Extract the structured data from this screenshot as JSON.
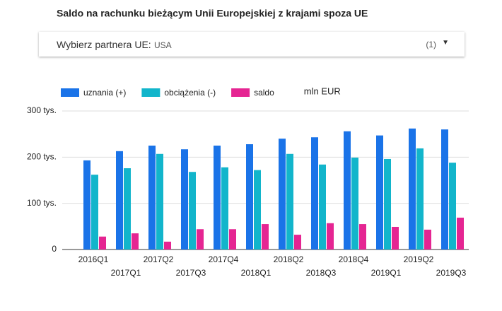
{
  "filter": {
    "label": "Wybierz partnera UE:",
    "value": "USA",
    "count": "(1)"
  },
  "chart_data": {
    "type": "bar",
    "title": "Saldo na rachunku bieżącym Unii Europejskiej z krajami spoza UE",
    "unit": "mln EUR",
    "categories": [
      "2016Q1",
      "2017Q1",
      "2017Q2",
      "2017Q3",
      "2017Q4",
      "2018Q1",
      "2018Q2",
      "2018Q3",
      "2018Q4",
      "2019Q1",
      "2019Q2",
      "2019Q3"
    ],
    "series": [
      {
        "name": "uznania (+)",
        "color": "#1a73e8",
        "values": [
          193000,
          213000,
          225000,
          217000,
          225000,
          228000,
          240000,
          243000,
          256000,
          247000,
          262000,
          260000
        ]
      },
      {
        "name": "obciążenia (-)",
        "color": "#12b5cb",
        "values": [
          162000,
          176000,
          207000,
          168000,
          178000,
          172000,
          207000,
          184000,
          199000,
          196000,
          219000,
          188000
        ]
      },
      {
        "name": "saldo",
        "color": "#e52592",
        "values": [
          28000,
          35000,
          17000,
          44000,
          44000,
          55000,
          32000,
          57000,
          55000,
          49000,
          43000,
          69000
        ]
      }
    ],
    "ylim": [
      0,
      300000
    ],
    "yticks": [
      {
        "value": 0,
        "label": "0"
      },
      {
        "value": 100000,
        "label": "100 tys."
      },
      {
        "value": 200000,
        "label": "200 tys."
      },
      {
        "value": 300000,
        "label": "300 tys."
      }
    ],
    "grid": true
  }
}
